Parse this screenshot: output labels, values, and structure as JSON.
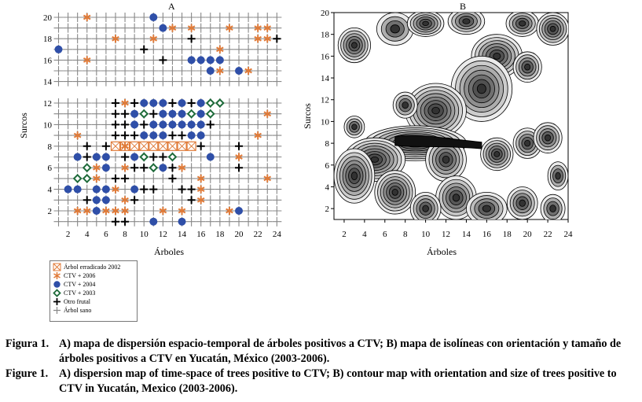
{
  "chart_data": [
    {
      "type": "scatter",
      "title": "A",
      "xlabel": "Árboles",
      "ylabel": "Surcos",
      "xlim": [
        1,
        24
      ],
      "ylim": [
        1,
        20
      ],
      "xticks": [
        2,
        4,
        6,
        8,
        10,
        12,
        14,
        16,
        18,
        20,
        22,
        24
      ],
      "yticks_top": [
        14,
        16,
        18,
        20
      ],
      "yticks_bottom": [
        2,
        4,
        6,
        8,
        10,
        12
      ],
      "empty_rows": [
        13
      ],
      "legend": [
        {
          "key": "eradicated",
          "label": "Árbol erradicado 2002",
          "color": "#e07b39"
        },
        {
          "key": "ctv2006",
          "label": "CTV + 2006",
          "color": "#e07b39"
        },
        {
          "key": "ctv2004",
          "label": "CTV + 2004",
          "color": "#2f4fa8"
        },
        {
          "key": "ctv2003",
          "label": "CTV + 2003",
          "color": "#1e6b3a"
        },
        {
          "key": "frutal",
          "label": "Otro frutal",
          "color": "#000000"
        },
        {
          "key": "sano",
          "label": "Árbol sano",
          "color": "#888888"
        }
      ],
      "points": {
        "eradicated": [
          [
            7,
            8
          ],
          [
            8,
            8
          ],
          [
            9,
            8
          ],
          [
            10,
            8
          ],
          [
            11,
            8
          ],
          [
            12,
            8
          ],
          [
            13,
            8
          ],
          [
            14,
            8
          ],
          [
            15,
            8
          ]
        ],
        "ctv2006": [
          [
            4,
            20
          ],
          [
            13,
            19
          ],
          [
            15,
            19
          ],
          [
            19,
            19
          ],
          [
            22,
            19
          ],
          [
            23,
            19
          ],
          [
            7,
            18
          ],
          [
            11,
            18
          ],
          [
            22,
            18
          ],
          [
            23,
            18
          ],
          [
            18,
            17
          ],
          [
            4,
            16
          ],
          [
            18,
            15
          ],
          [
            21,
            15
          ],
          [
            8,
            12
          ],
          [
            23,
            11
          ],
          [
            3,
            9
          ],
          [
            22,
            9
          ],
          [
            8,
            8
          ],
          [
            20,
            7
          ],
          [
            5,
            6
          ],
          [
            8,
            6
          ],
          [
            14,
            6
          ],
          [
            5,
            5
          ],
          [
            23,
            5
          ],
          [
            7,
            4
          ],
          [
            8,
            3
          ],
          [
            16,
            4
          ],
          [
            16,
            5
          ],
          [
            3,
            2
          ],
          [
            4,
            2
          ],
          [
            6,
            2
          ],
          [
            7,
            2
          ],
          [
            8,
            2
          ],
          [
            12,
            2
          ],
          [
            14,
            2
          ],
          [
            16,
            3
          ],
          [
            19,
            2
          ]
        ],
        "ctv2004": [
          [
            11,
            20
          ],
          [
            12,
            19
          ],
          [
            1,
            17
          ],
          [
            15,
            16
          ],
          [
            16,
            16
          ],
          [
            17,
            16
          ],
          [
            18,
            16
          ],
          [
            17,
            15
          ],
          [
            20,
            15
          ],
          [
            10,
            12
          ],
          [
            11,
            12
          ],
          [
            12,
            12
          ],
          [
            14,
            12
          ],
          [
            16,
            12
          ],
          [
            9,
            11
          ],
          [
            12,
            11
          ],
          [
            13,
            11
          ],
          [
            14,
            11
          ],
          [
            16,
            11
          ],
          [
            9,
            10
          ],
          [
            11,
            10
          ],
          [
            12,
            10
          ],
          [
            13,
            10
          ],
          [
            14,
            10
          ],
          [
            15,
            10
          ],
          [
            16,
            10
          ],
          [
            10,
            9
          ],
          [
            11,
            9
          ],
          [
            12,
            9
          ],
          [
            15,
            9
          ],
          [
            16,
            9
          ],
          [
            3,
            7
          ],
          [
            5,
            7
          ],
          [
            6,
            7
          ],
          [
            9,
            7
          ],
          [
            17,
            7
          ],
          [
            6,
            6
          ],
          [
            12,
            6
          ],
          [
            2,
            4
          ],
          [
            3,
            4
          ],
          [
            5,
            4
          ],
          [
            6,
            4
          ],
          [
            9,
            4
          ],
          [
            5,
            3
          ],
          [
            6,
            3
          ],
          [
            5,
            2
          ],
          [
            11,
            1
          ],
          [
            14,
            1
          ],
          [
            20,
            2
          ]
        ],
        "ctv2003": [
          [
            17,
            12
          ],
          [
            18,
            12
          ],
          [
            10,
            11
          ],
          [
            15,
            11
          ],
          [
            17,
            11
          ],
          [
            10,
            7
          ],
          [
            13,
            7
          ],
          [
            4,
            6
          ],
          [
            11,
            6
          ],
          [
            3,
            5
          ],
          [
            4,
            5
          ]
        ],
        "frutal": [
          [
            24,
            18
          ],
          [
            15,
            18
          ],
          [
            10,
            17
          ],
          [
            12,
            16
          ],
          [
            7,
            12
          ],
          [
            9,
            12
          ],
          [
            13,
            12
          ],
          [
            15,
            12
          ],
          [
            7,
            11
          ],
          [
            8,
            11
          ],
          [
            11,
            11
          ],
          [
            7,
            10
          ],
          [
            8,
            10
          ],
          [
            10,
            10
          ],
          [
            17,
            10
          ],
          [
            7,
            9
          ],
          [
            8,
            9
          ],
          [
            9,
            9
          ],
          [
            13,
            9
          ],
          [
            14,
            9
          ],
          [
            4,
            8
          ],
          [
            6,
            8
          ],
          [
            16,
            8
          ],
          [
            20,
            8
          ],
          [
            4,
            7
          ],
          [
            8,
            7
          ],
          [
            11,
            7
          ],
          [
            12,
            7
          ],
          [
            9,
            6
          ],
          [
            10,
            6
          ],
          [
            11,
            6
          ],
          [
            13,
            6
          ],
          [
            20,
            6
          ],
          [
            7,
            5
          ],
          [
            8,
            5
          ],
          [
            13,
            5
          ],
          [
            10,
            4
          ],
          [
            11,
            4
          ],
          [
            14,
            4
          ],
          [
            15,
            4
          ],
          [
            4,
            3
          ],
          [
            9,
            3
          ],
          [
            15,
            3
          ],
          [
            7,
            1
          ],
          [
            8,
            1
          ]
        ]
      }
    },
    {
      "type": "contour",
      "title": "B",
      "xlabel": "Árboles",
      "ylabel": "Surcos",
      "xlim": [
        1,
        24
      ],
      "ylim": [
        1,
        20
      ],
      "xticks": [
        2,
        4,
        6,
        8,
        10,
        12,
        14,
        16,
        18,
        20,
        22,
        24
      ],
      "yticks": [
        2,
        4,
        6,
        8,
        10,
        12,
        14,
        16,
        18,
        20
      ]
    }
  ],
  "caption": {
    "es_label": "Figura 1.",
    "es_text": "A) mapa de dispersión espacio-temporal de árboles positivos a CTV; B) mapa de isolíneas con orientación y tamaño de árboles positivos a CTV en Yucatán, México (2003-2006).",
    "en_label": "Figure 1.",
    "en_text": "A) dispersion map of time-space of trees positive to CTV; B) contour map with orientation and size of trees positive to CTV in Yucatán, Mexico (2003-2006)."
  },
  "colors": {
    "ctv2006": "#e07b39",
    "ctv2004": "#2f4fa8",
    "ctv2003": "#1e6b3a",
    "frutal": "#000000",
    "sano": "#888888"
  }
}
